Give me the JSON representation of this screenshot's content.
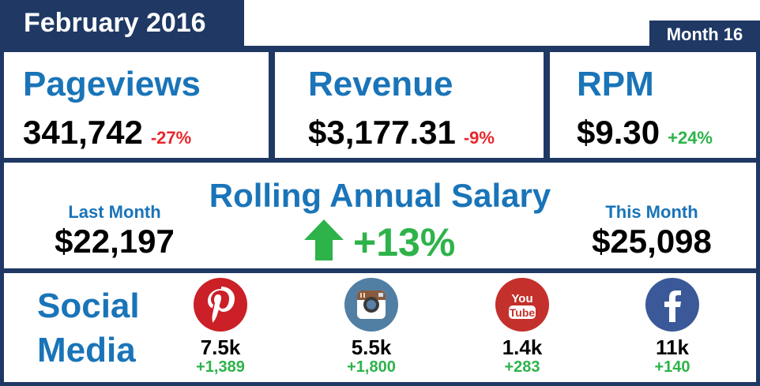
{
  "header": {
    "title": "February 2016",
    "month_label": "Month 16",
    "navy": "#1f3864"
  },
  "metrics": {
    "pageviews": {
      "label": "Pageviews",
      "value": "341,742",
      "change": "-27%"
    },
    "revenue": {
      "label": "Revenue",
      "value": "$3,177.31",
      "change": "-9%"
    },
    "rpm": {
      "label": "RPM",
      "value": "$9.30",
      "change": "+24%"
    }
  },
  "salary": {
    "title": "Rolling Annual Salary",
    "last_month_label": "Last Month",
    "last_month_value": "$22,197",
    "this_month_label": "This Month",
    "this_month_value": "$25,098",
    "change": "+13%",
    "trend_icon": "up-arrow-icon"
  },
  "social": {
    "title_line1": "Social",
    "title_line2": "Media",
    "networks": [
      {
        "icon": "pinterest-icon",
        "color": "#cb2027",
        "count": "7.5k",
        "delta": "+1,389"
      },
      {
        "icon": "instagram-icon",
        "color": "#517fa4",
        "count": "5.5k",
        "delta": "+1,800"
      },
      {
        "icon": "youtube-icon",
        "color": "#c4302b",
        "count": "1.4k",
        "delta": "+283"
      },
      {
        "icon": "facebook-icon",
        "color": "#3b5998",
        "count": "11k",
        "delta": "+140"
      }
    ]
  },
  "colors": {
    "blue_text": "#1a74b8",
    "positive": "#2db34a",
    "negative": "#e8272b"
  }
}
